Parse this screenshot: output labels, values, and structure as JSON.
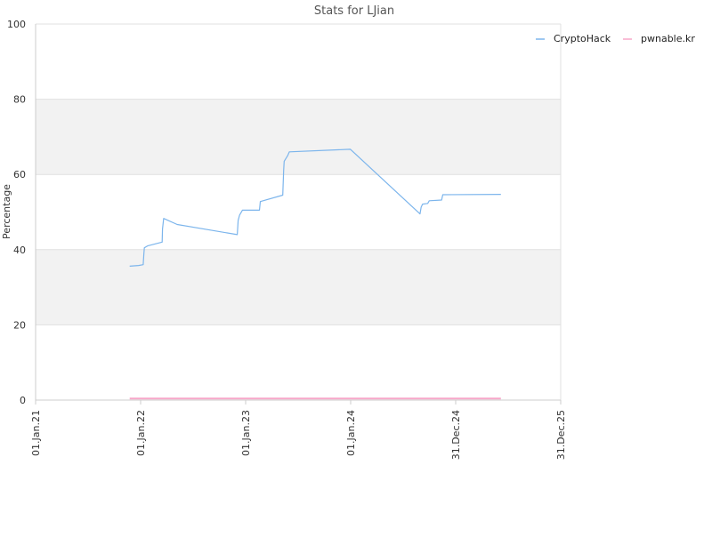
{
  "chart_data": {
    "type": "line",
    "title": "Stats for LJian",
    "ylabel": "Percentage",
    "xlabel": "",
    "ylim": [
      0,
      100
    ],
    "xlim": [
      "2021-01-01",
      "2025-12-31"
    ],
    "yticks": [
      0,
      20,
      40,
      60,
      80,
      100
    ],
    "xticks": [
      {
        "date": "2021-01-01",
        "label": "01.Jan.21"
      },
      {
        "date": "2022-01-01",
        "label": "01.Jan.22"
      },
      {
        "date": "2023-01-01",
        "label": "01.Jan.23"
      },
      {
        "date": "2024-01-01",
        "label": "01.Jan.24"
      },
      {
        "date": "2024-12-31",
        "label": "31.Dec.24"
      },
      {
        "date": "2025-12-31",
        "label": "31.Dec.25"
      }
    ],
    "grid": "alternating horizontal bands",
    "legend_position": "top-right",
    "series": [
      {
        "name": "CryptoHack",
        "color": "#7cb5ec",
        "points": [
          [
            "2021-11-24",
            35.6
          ],
          [
            "2021-12-25",
            35.8
          ],
          [
            "2022-01-10",
            36.0
          ],
          [
            "2022-01-12",
            38.7
          ],
          [
            "2022-01-14",
            40.5
          ],
          [
            "2022-01-25",
            41.0
          ],
          [
            "2022-03-17",
            42.0
          ],
          [
            "2022-03-18",
            45.5
          ],
          [
            "2022-03-22",
            48.3
          ],
          [
            "2022-05-08",
            46.7
          ],
          [
            "2022-12-03",
            44.0
          ],
          [
            "2022-12-06",
            47.8
          ],
          [
            "2022-12-11",
            49.2
          ],
          [
            "2022-12-21",
            50.5
          ],
          [
            "2023-02-18",
            50.5
          ],
          [
            "2023-02-21",
            52.8
          ],
          [
            "2023-05-10",
            54.5
          ],
          [
            "2023-05-13",
            61.0
          ],
          [
            "2023-05-15",
            63.5
          ],
          [
            "2023-05-27",
            65.0
          ],
          [
            "2023-06-02",
            66.0
          ],
          [
            "2023-12-31",
            66.7
          ],
          [
            "2024-08-29",
            49.5
          ],
          [
            "2024-09-02",
            51.3
          ],
          [
            "2024-09-07",
            52.1
          ],
          [
            "2024-09-25",
            52.3
          ],
          [
            "2024-09-30",
            53.0
          ],
          [
            "2024-11-12",
            53.2
          ],
          [
            "2024-11-16",
            54.6
          ],
          [
            "2025-06-06",
            54.7
          ]
        ]
      },
      {
        "name": "pwnable.kr",
        "color": "#f7a7c9",
        "points": [
          [
            "2021-11-24",
            0.4
          ],
          [
            "2025-06-06",
            0.4
          ]
        ]
      }
    ]
  }
}
